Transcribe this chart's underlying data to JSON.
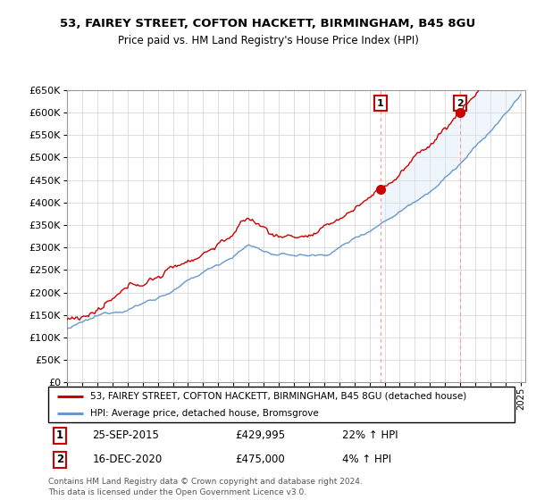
{
  "title": "53, FAIREY STREET, COFTON HACKETT, BIRMINGHAM, B45 8GU",
  "subtitle": "Price paid vs. HM Land Registry's House Price Index (HPI)",
  "legend_line1": "53, FAIREY STREET, COFTON HACKETT, BIRMINGHAM, B45 8GU (detached house)",
  "legend_line2": "HPI: Average price, detached house, Bromsgrove",
  "sale1_label": "1",
  "sale1_date": "25-SEP-2015",
  "sale1_price": "£429,995",
  "sale1_hpi": "22% ↑ HPI",
  "sale1_year": 2015.73,
  "sale1_value": 429995,
  "sale2_label": "2",
  "sale2_date": "16-DEC-2020",
  "sale2_price": "£475,000",
  "sale2_hpi": "4% ↑ HPI",
  "sale2_year": 2020.96,
  "sale2_value": 475000,
  "footer": "Contains HM Land Registry data © Crown copyright and database right 2024.\nThis data is licensed under the Open Government Licence v3.0.",
  "ylim": [
    0,
    650000
  ],
  "yticks": [
    0,
    50000,
    100000,
    150000,
    200000,
    250000,
    300000,
    350000,
    400000,
    450000,
    500000,
    550000,
    600000,
    650000
  ],
  "red_color": "#cc0000",
  "blue_color": "#6699cc",
  "shading_color": "#d6e8f5",
  "marker_box_color": "#cc0000",
  "background_color": "#ffffff",
  "vline_color": "#ff9999"
}
